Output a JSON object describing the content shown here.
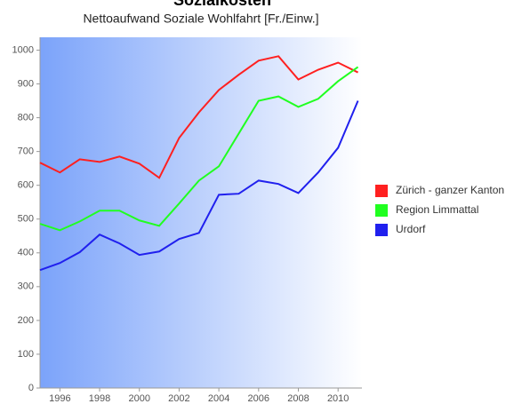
{
  "chart_data": {
    "type": "line",
    "title": "Sozialkosten",
    "subtitle": "Nettoaufwand Soziale Wohlfahrt [Fr./Einw.]",
    "x": [
      1995,
      1996,
      1997,
      1998,
      1999,
      2000,
      2001,
      2002,
      2003,
      2004,
      2005,
      2006,
      2007,
      2008,
      2009,
      2010,
      2011
    ],
    "series": [
      {
        "name": "Zürich - ganzer Kanton",
        "color": "#ff2020",
        "values": [
          667,
          638,
          677,
          669,
          685,
          664,
          622,
          740,
          816,
          882,
          927,
          969,
          982,
          913,
          942,
          963,
          934
        ]
      },
      {
        "name": "Region Limmattal",
        "color": "#20ff20",
        "values": [
          486,
          467,
          493,
          525,
          525,
          496,
          480,
          546,
          614,
          656,
          753,
          850,
          863,
          832,
          856,
          908,
          950
        ]
      },
      {
        "name": "Urdorf",
        "color": "#2020ee",
        "values": [
          349,
          370,
          402,
          454,
          428,
          394,
          404,
          441,
          459,
          572,
          575,
          614,
          604,
          577,
          638,
          711,
          850
        ]
      }
    ],
    "xlim": [
      1995,
      2011.2
    ],
    "xticks": [
      1996,
      1998,
      2000,
      2002,
      2004,
      2006,
      2008,
      2010
    ],
    "ylim": [
      0,
      1038
    ],
    "yticks": [
      0,
      100,
      200,
      300,
      400,
      500,
      600,
      700,
      800,
      900,
      1000
    ],
    "legend": "right"
  }
}
